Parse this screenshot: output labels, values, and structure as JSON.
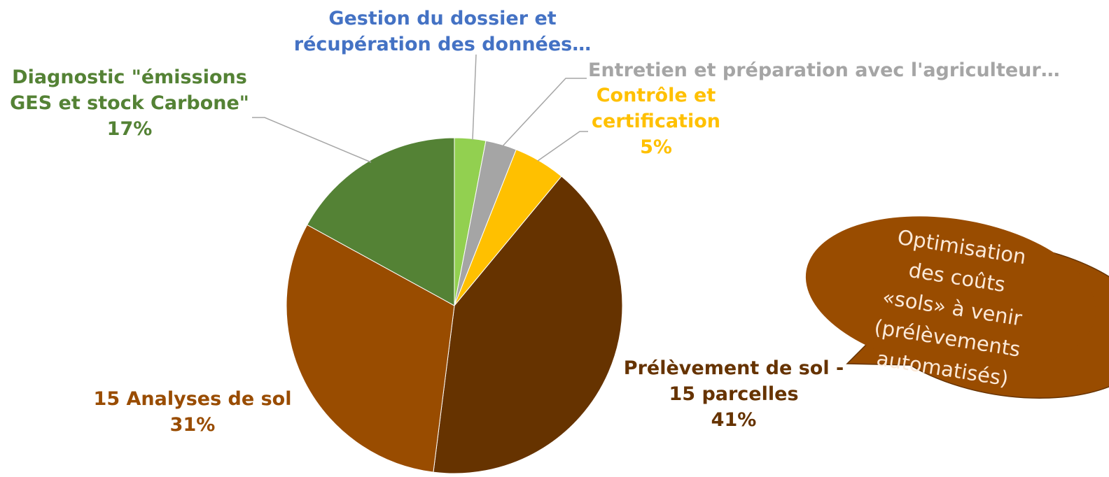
{
  "chart_data": {
    "type": "pie",
    "categories": [
      "Gestion du dossier et\nrécupération des données…",
      "Entretien et préparation avec l'agriculteur…",
      "Contrôle et\ncertification",
      "Prélèvement de sol -\n15 parcelles",
      "15 Analyses de sol",
      "Diagnostic \"émissions\nGES et stock Carbone\""
    ],
    "values": [
      3,
      3,
      5,
      41,
      31,
      17
    ],
    "value_labels": [
      null,
      null,
      "5%",
      "41%",
      "31%",
      "17%"
    ],
    "colors": [
      "#92d050",
      "#a5a5a5",
      "#ffc000",
      "#663300",
      "#994c00",
      "#548235"
    ],
    "label_colors": [
      "#4472c4",
      "#a5a5a5",
      "#ffc000",
      "#663300",
      "#994c00",
      "#548235"
    ],
    "annotation": "Optimisation\ndes coûts\n«sols» à venir\n(prélèvements\nautomatisés)"
  }
}
